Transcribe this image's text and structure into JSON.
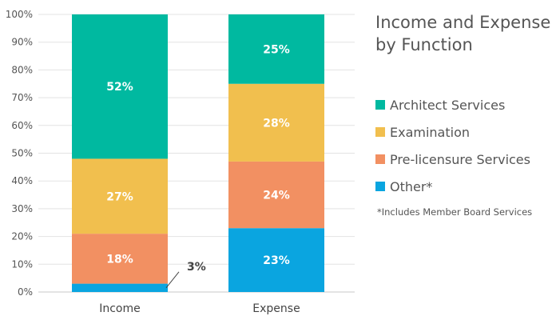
{
  "chart_data": {
    "type": "bar",
    "stacked": true,
    "categories": [
      "Income",
      "Expense"
    ],
    "series": [
      {
        "name": "Other*",
        "values": [
          3,
          23
        ],
        "color": "#0aa5e0",
        "labels": [
          "3%",
          "23%"
        ]
      },
      {
        "name": "Pre-licensure Services",
        "values": [
          18,
          24
        ],
        "color": "#f29062",
        "labels": [
          "18%",
          "24%"
        ]
      },
      {
        "name": "Examination",
        "values": [
          27,
          28
        ],
        "color": "#f1bf4e",
        "labels": [
          "27%",
          "28%"
        ]
      },
      {
        "name": "Architect Services",
        "values": [
          52,
          25
        ],
        "color": "#00b9a0",
        "labels": [
          "52%",
          "25%"
        ]
      }
    ],
    "legend_order": [
      "Architect Services",
      "Examination",
      "Pre-licensure Services",
      "Other*"
    ],
    "legend_placement": "right",
    "title": "Income and Expense by Function",
    "title_lines": [
      "Income and Expense",
      "by Function"
    ],
    "xlabel": "",
    "ylabel": "",
    "ylim": [
      0,
      100
    ],
    "yticks": [
      "0%",
      "10%",
      "20%",
      "30%",
      "40%",
      "50%",
      "60%",
      "70%",
      "80%",
      "90%",
      "100%"
    ],
    "grid": true,
    "footnote": "*Includes Member Board Services"
  }
}
